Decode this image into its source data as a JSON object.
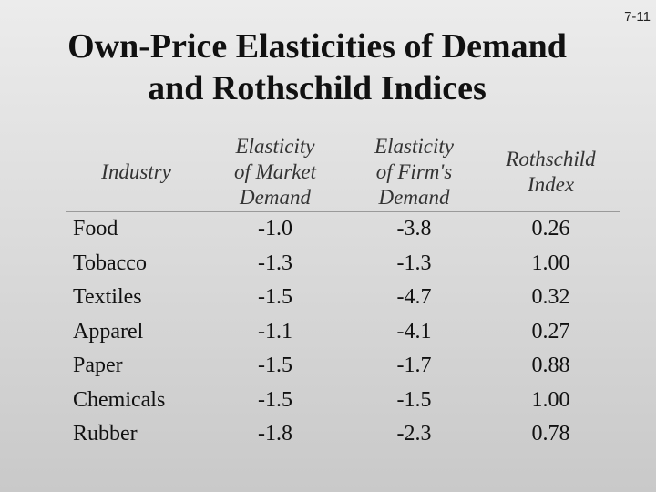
{
  "slide_number": "7-11",
  "title": {
    "line1": "Own-Price Elasticities of Demand",
    "line2": "and Rothschild Indices"
  },
  "table": {
    "headers": [
      [
        "Industry"
      ],
      [
        "Elasticity",
        "of Market",
        "Demand"
      ],
      [
        "Elasticity",
        "of Firm's",
        "Demand"
      ],
      [
        "Rothschild",
        "Index"
      ]
    ],
    "rows": [
      [
        "Food",
        "-1.0",
        "-3.8",
        "0.26"
      ],
      [
        "Tobacco",
        "-1.3",
        "-1.3",
        "1.00"
      ],
      [
        "Textiles",
        "-1.5",
        "-4.7",
        "0.32"
      ],
      [
        "Apparel",
        "-1.1",
        "-4.1",
        "0.27"
      ],
      [
        "Paper",
        "-1.5",
        "-1.7",
        "0.88"
      ],
      [
        "Chemicals",
        "-1.5",
        "-1.5",
        "1.00"
      ],
      [
        "Rubber",
        "-1.8",
        "-2.3",
        "0.78"
      ]
    ]
  }
}
